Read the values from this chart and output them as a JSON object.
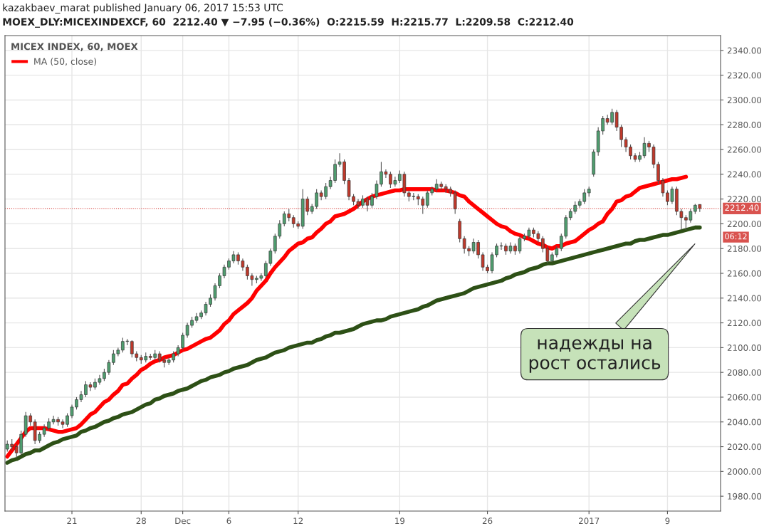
{
  "chart_data": {
    "type": "candlestick",
    "title": "MICEX INDEX, 60, MOEX",
    "categories": [
      null,
      null,
      null,
      null,
      null,
      null,
      null,
      null,
      null,
      null,
      null,
      null,
      null,
      null,
      "21",
      null,
      null,
      null,
      null,
      null,
      null,
      null,
      null,
      null,
      null,
      null,
      null,
      null,
      null,
      "28",
      null,
      null,
      null,
      null,
      null,
      null,
      null,
      null,
      "Dec",
      null,
      null,
      null,
      null,
      null,
      null,
      null,
      null,
      null,
      "6",
      null,
      null,
      null,
      null,
      null,
      null,
      null,
      null,
      null,
      null,
      null,
      null,
      null,
      null,
      "12",
      null,
      null,
      null,
      null,
      null,
      null,
      null,
      null,
      null,
      null,
      null,
      null,
      null,
      null,
      null,
      null,
      null,
      null,
      null,
      null,
      null,
      "19",
      null,
      null,
      null,
      null,
      null,
      null,
      null,
      null,
      null,
      null,
      null,
      null,
      null,
      null,
      null,
      null,
      null,
      null,
      "26",
      null,
      null,
      null,
      null,
      null,
      null,
      null,
      null,
      null,
      null,
      null,
      null,
      null,
      null,
      null,
      null,
      null,
      null,
      null,
      null,
      null,
      "2017",
      null,
      null,
      null,
      null,
      null,
      null,
      null,
      null,
      null,
      null,
      null,
      null,
      null,
      null,
      null,
      null,
      "9",
      null,
      null,
      null,
      null,
      null,
      null,
      null
    ],
    "ohlc": [
      [
        2018,
        2025,
        2016,
        2022
      ],
      [
        2022,
        2026,
        2017,
        2020
      ],
      [
        2020,
        2022,
        2011,
        2015
      ],
      [
        2015,
        2033,
        2013,
        2030
      ],
      [
        2030,
        2048,
        2028,
        2045
      ],
      [
        2045,
        2047,
        2037,
        2040
      ],
      [
        2040,
        2042,
        2022,
        2025
      ],
      [
        2025,
        2032,
        2023,
        2030
      ],
      [
        2030,
        2038,
        2028,
        2035
      ],
      [
        2035,
        2043,
        2033,
        2040
      ],
      [
        2040,
        2045,
        2038,
        2042
      ],
      [
        2042,
        2044,
        2037,
        2040
      ],
      [
        2040,
        2042,
        2035,
        2038
      ],
      [
        2038,
        2047,
        2036,
        2045
      ],
      [
        2045,
        2054,
        2043,
        2052
      ],
      [
        2052,
        2060,
        2050,
        2058
      ],
      [
        2058,
        2065,
        2056,
        2062
      ],
      [
        2062,
        2073,
        2060,
        2070
      ],
      [
        2070,
        2072,
        2065,
        2068
      ],
      [
        2068,
        2075,
        2066,
        2072
      ],
      [
        2072,
        2078,
        2070,
        2075
      ],
      [
        2075,
        2083,
        2073,
        2080
      ],
      [
        2080,
        2090,
        2078,
        2088
      ],
      [
        2088,
        2098,
        2086,
        2095
      ],
      [
        2095,
        2100,
        2093,
        2098
      ],
      [
        2098,
        2108,
        2096,
        2105
      ],
      [
        2105,
        2107,
        2102,
        2105
      ],
      [
        2105,
        2106,
        2092,
        2095
      ],
      [
        2095,
        2097,
        2089,
        2092
      ],
      [
        2092,
        2094,
        2087,
        2090
      ],
      [
        2090,
        2096,
        2088,
        2093
      ],
      [
        2093,
        2095,
        2090,
        2092
      ],
      [
        2092,
        2098,
        2090,
        2095
      ],
      [
        2095,
        2097,
        2088,
        2090
      ],
      [
        2090,
        2092,
        2084,
        2088
      ],
      [
        2088,
        2092,
        2086,
        2090
      ],
      [
        2090,
        2097,
        2088,
        2095
      ],
      [
        2095,
        2102,
        2093,
        2100
      ],
      [
        2100,
        2112,
        2098,
        2110
      ],
      [
        2110,
        2120,
        2108,
        2118
      ],
      [
        2118,
        2125,
        2116,
        2122
      ],
      [
        2122,
        2128,
        2120,
        2125
      ],
      [
        2125,
        2130,
        2123,
        2128
      ],
      [
        2128,
        2137,
        2126,
        2135
      ],
      [
        2135,
        2143,
        2133,
        2140
      ],
      [
        2140,
        2152,
        2138,
        2150
      ],
      [
        2150,
        2160,
        2148,
        2158
      ],
      [
        2158,
        2167,
        2156,
        2165
      ],
      [
        2165,
        2172,
        2163,
        2170
      ],
      [
        2170,
        2178,
        2168,
        2175
      ],
      [
        2175,
        2177,
        2167,
        2170
      ],
      [
        2170,
        2172,
        2162,
        2165
      ],
      [
        2165,
        2167,
        2155,
        2158
      ],
      [
        2158,
        2160,
        2150,
        2155
      ],
      [
        2155,
        2158,
        2152,
        2156
      ],
      [
        2156,
        2160,
        2154,
        2158
      ],
      [
        2158,
        2170,
        2156,
        2168
      ],
      [
        2168,
        2180,
        2166,
        2178
      ],
      [
        2178,
        2192,
        2176,
        2190
      ],
      [
        2190,
        2203,
        2188,
        2200
      ],
      [
        2200,
        2210,
        2198,
        2208
      ],
      [
        2208,
        2212,
        2202,
        2205
      ],
      [
        2205,
        2207,
        2197,
        2200
      ],
      [
        2200,
        2202,
        2196,
        2198
      ],
      [
        2198,
        2228,
        2196,
        2220
      ],
      [
        2220,
        2222,
        2207,
        2210
      ],
      [
        2210,
        2216,
        2208,
        2214
      ],
      [
        2214,
        2228,
        2212,
        2225
      ],
      [
        2225,
        2227,
        2219,
        2222
      ],
      [
        2222,
        2233,
        2220,
        2230
      ],
      [
        2230,
        2238,
        2228,
        2235
      ],
      [
        2235,
        2252,
        2233,
        2248
      ],
      [
        2248,
        2257,
        2246,
        2250
      ],
      [
        2250,
        2252,
        2232,
        2235
      ],
      [
        2235,
        2237,
        2219,
        2222
      ],
      [
        2222,
        2224,
        2215,
        2218
      ],
      [
        2218,
        2220,
        2212,
        2215
      ],
      [
        2215,
        2223,
        2213,
        2220
      ],
      [
        2220,
        2222,
        2210,
        2215
      ],
      [
        2215,
        2225,
        2213,
        2222
      ],
      [
        2222,
        2235,
        2220,
        2232
      ],
      [
        2232,
        2250,
        2230,
        2242
      ],
      [
        2242,
        2244,
        2237,
        2240
      ],
      [
        2240,
        2242,
        2229,
        2232
      ],
      [
        2232,
        2238,
        2230,
        2235
      ],
      [
        2235,
        2243,
        2233,
        2240
      ],
      [
        2240,
        2242,
        2222,
        2225
      ],
      [
        2225,
        2227,
        2218,
        2222
      ],
      [
        2222,
        2225,
        2219,
        2222
      ],
      [
        2222,
        2224,
        2215,
        2220
      ],
      [
        2220,
        2222,
        2208,
        2215
      ],
      [
        2215,
        2227,
        2213,
        2225
      ],
      [
        2225,
        2230,
        2223,
        2228
      ],
      [
        2228,
        2236,
        2226,
        2232
      ],
      [
        2232,
        2234,
        2227,
        2230
      ],
      [
        2230,
        2232,
        2225,
        2228
      ],
      [
        2228,
        2230,
        2222,
        2225
      ],
      [
        2225,
        2227,
        2208,
        2212
      ],
      [
        2202,
        2204,
        2185,
        2188
      ],
      [
        2188,
        2190,
        2176,
        2180
      ],
      [
        2180,
        2182,
        2174,
        2178
      ],
      [
        2178,
        2188,
        2176,
        2185
      ],
      [
        2185,
        2187,
        2172,
        2175
      ],
      [
        2175,
        2177,
        2162,
        2165
      ],
      [
        2165,
        2167,
        2160,
        2162
      ],
      [
        2162,
        2177,
        2160,
        2175
      ],
      [
        2175,
        2184,
        2173,
        2182
      ],
      [
        2182,
        2185,
        2179,
        2182
      ],
      [
        2182,
        2184,
        2175,
        2178
      ],
      [
        2178,
        2185,
        2176,
        2182
      ],
      [
        2182,
        2184,
        2175,
        2178
      ],
      [
        2178,
        2190,
        2176,
        2188
      ],
      [
        2188,
        2192,
        2186,
        2190
      ],
      [
        2190,
        2197,
        2188,
        2195
      ],
      [
        2195,
        2197,
        2189,
        2192
      ],
      [
        2192,
        2194,
        2185,
        2188
      ],
      [
        2188,
        2190,
        2177,
        2180
      ],
      [
        2180,
        2182,
        2168,
        2170
      ],
      [
        2170,
        2177,
        2169,
        2175
      ],
      [
        2175,
        2182,
        2173,
        2180
      ],
      [
        2180,
        2192,
        2178,
        2190
      ],
      [
        2190,
        2207,
        2188,
        2205
      ],
      [
        2205,
        2212,
        2203,
        2210
      ],
      [
        2210,
        2218,
        2208,
        2215
      ],
      [
        2215,
        2220,
        2213,
        2218
      ],
      [
        2218,
        2228,
        2216,
        2225
      ],
      [
        2225,
        2230,
        2222,
        2228
      ],
      [
        2240,
        2260,
        2238,
        2258
      ],
      [
        2258,
        2278,
        2255,
        2275
      ],
      [
        2275,
        2287,
        2272,
        2285
      ],
      [
        2285,
        2288,
        2280,
        2282
      ],
      [
        2282,
        2293,
        2280,
        2290
      ],
      [
        2290,
        2292,
        2275,
        2278
      ],
      [
        2278,
        2280,
        2262,
        2268
      ],
      [
        2268,
        2270,
        2258,
        2262
      ],
      [
        2262,
        2264,
        2252,
        2255
      ],
      [
        2255,
        2257,
        2250,
        2252
      ],
      [
        2252,
        2258,
        2250,
        2255
      ],
      [
        2255,
        2270,
        2253,
        2265
      ],
      [
        2265,
        2267,
        2258,
        2262
      ],
      [
        2262,
        2264,
        2245,
        2248
      ],
      [
        2248,
        2250,
        2232,
        2235
      ],
      [
        2235,
        2237,
        2222,
        2225
      ],
      [
        2225,
        2227,
        2215,
        2218
      ],
      [
        2218,
        2230,
        2216,
        2228
      ],
      [
        2228,
        2230,
        2207,
        2210
      ],
      [
        2210,
        2212,
        2195,
        2205
      ],
      [
        2205,
        2207,
        2195,
        2203
      ],
      [
        2203,
        2212,
        2201,
        2210
      ],
      [
        2210,
        2216,
        2208,
        2215
      ],
      [
        2215.59,
        2215.77,
        2209.58,
        2212.4
      ]
    ],
    "series": [
      {
        "name": "MA (50, close)",
        "type": "line",
        "color": "#ff0000",
        "values": [
          2012,
          2017,
          2022,
          2027,
          2032,
          2035,
          2035,
          2035,
          2035,
          2034,
          2033,
          2032,
          2032,
          2033,
          2034,
          2035,
          2038,
          2042,
          2046,
          2048,
          2052,
          2056,
          2058,
          2062,
          2065,
          2070,
          2071,
          2075,
          2078,
          2082,
          2084,
          2087,
          2089,
          2090,
          2092,
          2093,
          2094,
          2096,
          2098,
          2099,
          2101,
          2103,
          2105,
          2107,
          2108,
          2111,
          2114,
          2119,
          2122,
          2127,
          2130,
          2133,
          2136,
          2140,
          2146,
          2150,
          2154,
          2160,
          2165,
          2169,
          2173,
          2178,
          2181,
          2184,
          2185,
          2188,
          2189,
          2193,
          2196,
          2200,
          2202,
          2206,
          2207,
          2208,
          2210,
          2212,
          2215,
          2218,
          2220,
          2222,
          2223,
          2224,
          2225,
          2226,
          2227,
          2227,
          2228,
          2228,
          2228,
          2228,
          2228,
          2228,
          2228,
          2227,
          2227,
          2227,
          2226,
          2225,
          2223,
          2222,
          2218,
          2215,
          2212,
          2209,
          2206,
          2203,
          2200,
          2198,
          2197,
          2194,
          2192,
          2191,
          2189,
          2188,
          2186,
          2184,
          2183,
          2181,
          2180,
          2182,
          2182,
          2184,
          2185,
          2186,
          2189,
          2192,
          2195,
          2197,
          2200,
          2202,
          2208,
          2212,
          2218,
          2219,
          2222,
          2223,
          2226,
          2229,
          2230,
          2231,
          2232,
          2233,
          2234,
          2235,
          2236,
          2236,
          2237,
          2238,
          null,
          null,
          null
        ]
      },
      {
        "type": "line",
        "color": "#2d5016",
        "values": [
          2007,
          2009,
          2010,
          2012,
          2014,
          2015,
          2017,
          2017,
          2019,
          2021,
          2023,
          2024,
          2026,
          2027,
          2028,
          2029,
          2032,
          2033,
          2035,
          2036,
          2038,
          2040,
          2041,
          2043,
          2044,
          2046,
          2047,
          2048,
          2050,
          2052,
          2054,
          2055,
          2058,
          2059,
          2061,
          2062,
          2063,
          2065,
          2066,
          2067,
          2069,
          2071,
          2073,
          2074,
          2076,
          2077,
          2078,
          2080,
          2081,
          2083,
          2084,
          2085,
          2086,
          2088,
          2090,
          2091,
          2092,
          2094,
          2096,
          2097,
          2098,
          2100,
          2101,
          2102,
          2103,
          2104,
          2104,
          2106,
          2107,
          2109,
          2110,
          2112,
          2112,
          2113,
          2114,
          2115,
          2117,
          2119,
          2120,
          2121,
          2122,
          2122,
          2123,
          2125,
          2126,
          2127,
          2128,
          2129,
          2130,
          2131,
          2133,
          2134,
          2136,
          2138,
          2139,
          2140,
          2141,
          2142,
          2143,
          2144,
          2146,
          2148,
          2149,
          2150,
          2151,
          2152,
          2153,
          2154,
          2156,
          2157,
          2159,
          2160,
          2161,
          2163,
          2164,
          2165,
          2167,
          2168,
          2168,
          2169,
          2170,
          2171,
          2172,
          2173,
          2174,
          2175,
          2176,
          2177,
          2178,
          2179,
          2180,
          2181,
          2182,
          2183,
          2184,
          2184,
          2186,
          2187,
          2187,
          2188,
          2189,
          2190,
          2191,
          2191,
          2192,
          2193,
          2194,
          2195,
          2196,
          2197,
          2197
        ]
      }
    ],
    "ylim": [
      1968,
      2352
    ],
    "yticks": [
      {
        "value": 1980,
        "label": "1980.00"
      },
      {
        "value": 2000,
        "label": "2000.00"
      },
      {
        "value": 2020,
        "label": "2020.00"
      },
      {
        "value": 2040,
        "label": "2040.00"
      },
      {
        "value": 2060,
        "label": "2060.00"
      },
      {
        "value": 2080,
        "label": "2080.00"
      },
      {
        "value": 2100,
        "label": "2100.00"
      },
      {
        "value": 2120,
        "label": "2120.00"
      },
      {
        "value": 2140,
        "label": "2140.00"
      },
      {
        "value": 2160,
        "label": "2160.00"
      },
      {
        "value": 2180,
        "label": "2180.00"
      },
      {
        "value": 2200,
        "label": "2200.00"
      },
      {
        "value": 2220,
        "label": "2220.00"
      },
      {
        "value": 2240,
        "label": "2240.00"
      },
      {
        "value": 2260,
        "label": "2260.00"
      },
      {
        "value": 2280,
        "label": "2280.00"
      },
      {
        "value": 2300,
        "label": "2300.00"
      },
      {
        "value": 2320,
        "label": "2320.00"
      },
      {
        "value": 2340,
        "label": "2340.00"
      }
    ],
    "ref_lines": [
      {
        "axis": "y",
        "value": 2212.4,
        "label": "2212.40",
        "color": "#d9534f",
        "line_style": "dotted"
      }
    ],
    "annotations": [
      "kazakbaev_marat published January 06, 2017 15:53 UTC",
      "MOEX_DLY:MICEXINDEXCF, 60  2212.40 ▼ −7.95 (−0.36%)  O:2215.59  H:2215.77  L:2209.58  C:2212.40",
      "06:12",
      "надежды на\nрост остались"
    ],
    "grid": true,
    "legend": "top left"
  }
}
